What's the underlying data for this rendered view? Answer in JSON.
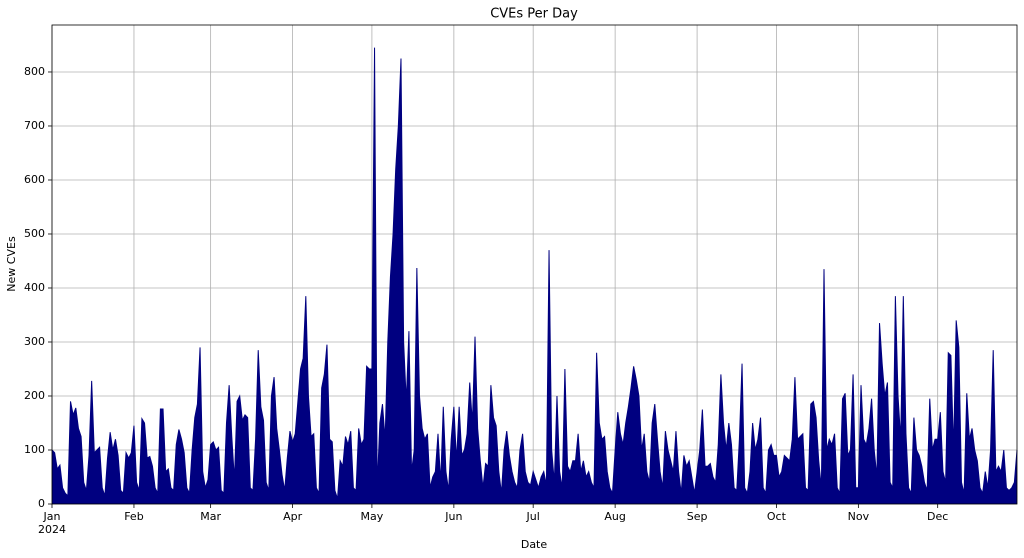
{
  "chart_data": {
    "type": "area",
    "title": "CVEs Per Day",
    "x_label": "Date",
    "y_label": "New CVEs",
    "x_sublabel": "2024",
    "color": "#000080",
    "grid": true,
    "xlim": [
      1,
      366
    ],
    "ylim": [
      0,
      887
    ],
    "xticks": [
      {
        "value": 1,
        "label": "Jan"
      },
      {
        "value": 32,
        "label": "Feb"
      },
      {
        "value": 61,
        "label": "Mar"
      },
      {
        "value": 92,
        "label": "Apr"
      },
      {
        "value": 122,
        "label": "May"
      },
      {
        "value": 153,
        "label": "Jun"
      },
      {
        "value": 183,
        "label": "Jul"
      },
      {
        "value": 214,
        "label": "Aug"
      },
      {
        "value": 245,
        "label": "Sep"
      },
      {
        "value": 275,
        "label": "Oct"
      },
      {
        "value": 306,
        "label": "Nov"
      },
      {
        "value": 336,
        "label": "Dec"
      }
    ],
    "yticks": [
      0,
      100,
      200,
      300,
      400,
      500,
      600,
      700,
      800
    ],
    "x": [
      1,
      2,
      3,
      4,
      5,
      6,
      7,
      8,
      9,
      10,
      11,
      12,
      13,
      14,
      15,
      16,
      17,
      18,
      19,
      20,
      21,
      22,
      23,
      24,
      25,
      26,
      27,
      28,
      29,
      30,
      31,
      32,
      33,
      34,
      35,
      36,
      37,
      38,
      39,
      40,
      41,
      42,
      43,
      44,
      45,
      46,
      47,
      48,
      49,
      50,
      51,
      52,
      53,
      54,
      55,
      56,
      57,
      58,
      59,
      60,
      61,
      62,
      63,
      64,
      65,
      66,
      67,
      68,
      69,
      70,
      71,
      72,
      73,
      74,
      75,
      76,
      77,
      78,
      79,
      80,
      81,
      82,
      83,
      84,
      85,
      86,
      87,
      88,
      89,
      90,
      91,
      92,
      93,
      94,
      95,
      96,
      97,
      98,
      99,
      100,
      101,
      102,
      103,
      104,
      105,
      106,
      107,
      108,
      109,
      110,
      111,
      112,
      113,
      114,
      115,
      116,
      117,
      118,
      119,
      120,
      121,
      122,
      123,
      124,
      125,
      126,
      127,
      128,
      129,
      130,
      131,
      132,
      133,
      134,
      135,
      136,
      137,
      138,
      139,
      140,
      141,
      142,
      143,
      144,
      145,
      146,
      147,
      148,
      149,
      150,
      151,
      152,
      153,
      154,
      155,
      156,
      157,
      158,
      159,
      160,
      161,
      162,
      163,
      164,
      165,
      166,
      167,
      168,
      169,
      170,
      171,
      172,
      173,
      174,
      175,
      176,
      177,
      178,
      179,
      180,
      181,
      182,
      183,
      184,
      185,
      186,
      187,
      188,
      189,
      190,
      191,
      192,
      193,
      194,
      195,
      196,
      197,
      198,
      199,
      200,
      201,
      202,
      203,
      204,
      205,
      206,
      207,
      208,
      209,
      210,
      211,
      212,
      213,
      214,
      215,
      216,
      217,
      218,
      219,
      220,
      221,
      222,
      223,
      224,
      225,
      226,
      227,
      228,
      229,
      230,
      231,
      232,
      233,
      234,
      235,
      236,
      237,
      238,
      239,
      240,
      241,
      242,
      243,
      244,
      245,
      246,
      247,
      248,
      249,
      250,
      251,
      252,
      253,
      254,
      255,
      256,
      257,
      258,
      259,
      260,
      261,
      262,
      263,
      264,
      265,
      266,
      267,
      268,
      269,
      270,
      271,
      272,
      273,
      274,
      275,
      276,
      277,
      278,
      279,
      280,
      281,
      282,
      283,
      284,
      285,
      286,
      287,
      288,
      289,
      290,
      291,
      292,
      293,
      294,
      295,
      296,
      297,
      298,
      299,
      300,
      301,
      302,
      303,
      304,
      305,
      306,
      307,
      308,
      309,
      310,
      311,
      312,
      313,
      314,
      315,
      316,
      317,
      318,
      319,
      320,
      321,
      322,
      323,
      324,
      325,
      326,
      327,
      328,
      329,
      330,
      331,
      332,
      333,
      334,
      335,
      336,
      337,
      338,
      339,
      340,
      341,
      342,
      343,
      344,
      345,
      346,
      347,
      348,
      349,
      350,
      351,
      352,
      353,
      354,
      355,
      356,
      357,
      358,
      359,
      360,
      361,
      362,
      363,
      364,
      365,
      366
    ],
    "values": [
      100,
      95,
      65,
      72,
      30,
      20,
      15,
      190,
      165,
      178,
      140,
      125,
      40,
      25,
      90,
      228,
      95,
      100,
      105,
      30,
      15,
      85,
      133,
      100,
      120,
      90,
      25,
      20,
      95,
      85,
      95,
      145,
      40,
      25,
      158,
      150,
      85,
      88,
      70,
      30,
      20,
      176,
      176,
      60,
      65,
      30,
      25,
      110,
      138,
      120,
      95,
      30,
      20,
      100,
      160,
      185,
      290,
      60,
      30,
      45,
      110,
      115,
      100,
      105,
      25,
      20,
      150,
      220,
      125,
      45,
      190,
      200,
      155,
      165,
      160,
      30,
      25,
      120,
      285,
      180,
      155,
      40,
      25,
      200,
      235,
      140,
      100,
      55,
      25,
      85,
      135,
      115,
      130,
      190,
      250,
      270,
      385,
      200,
      125,
      130,
      30,
      20,
      215,
      240,
      295,
      120,
      115,
      25,
      10,
      80,
      70,
      125,
      110,
      135,
      30,
      25,
      140,
      110,
      120,
      255,
      250,
      250,
      845,
      30,
      150,
      185,
      120,
      300,
      420,
      500,
      620,
      700,
      825,
      300,
      190,
      320,
      60,
      100,
      437,
      200,
      140,
      120,
      130,
      30,
      50,
      60,
      130,
      40,
      180,
      60,
      25,
      120,
      180,
      80,
      180,
      90,
      100,
      130,
      225,
      150,
      310,
      140,
      80,
      30,
      75,
      70,
      220,
      160,
      145,
      60,
      20,
      100,
      135,
      90,
      60,
      40,
      30,
      100,
      130,
      60,
      40,
      35,
      60,
      45,
      30,
      50,
      60,
      35,
      470,
      100,
      40,
      200,
      60,
      30,
      250,
      70,
      60,
      80,
      80,
      130,
      60,
      80,
      50,
      60,
      40,
      30,
      280,
      150,
      120,
      125,
      60,
      30,
      20,
      100,
      170,
      130,
      110,
      150,
      180,
      215,
      255,
      230,
      200,
      100,
      130,
      60,
      40,
      150,
      185,
      120,
      60,
      30,
      135,
      100,
      80,
      60,
      135,
      60,
      20,
      90,
      70,
      80,
      50,
      20,
      60,
      100,
      175,
      70,
      70,
      75,
      50,
      40,
      110,
      240,
      150,
      100,
      150,
      110,
      30,
      25,
      120,
      260,
      30,
      20,
      60,
      150,
      100,
      120,
      160,
      30,
      20,
      100,
      110,
      90,
      90,
      50,
      60,
      90,
      85,
      80,
      120,
      235,
      120,
      125,
      130,
      30,
      25,
      185,
      190,
      160,
      80,
      30,
      435,
      100,
      120,
      110,
      130,
      30,
      20,
      195,
      205,
      90,
      100,
      240,
      30,
      30,
      220,
      120,
      110,
      140,
      195,
      100,
      50,
      335,
      260,
      200,
      225,
      40,
      30,
      385,
      200,
      120,
      385,
      130,
      30,
      20,
      160,
      100,
      90,
      70,
      40,
      25,
      195,
      100,
      120,
      120,
      170,
      60,
      40,
      280,
      275,
      100,
      340,
      290,
      40,
      20,
      205,
      120,
      140,
      100,
      80,
      30,
      20,
      60,
      30,
      100,
      285,
      60,
      70,
      60,
      100,
      30,
      25,
      30,
      40,
      100
    ]
  }
}
